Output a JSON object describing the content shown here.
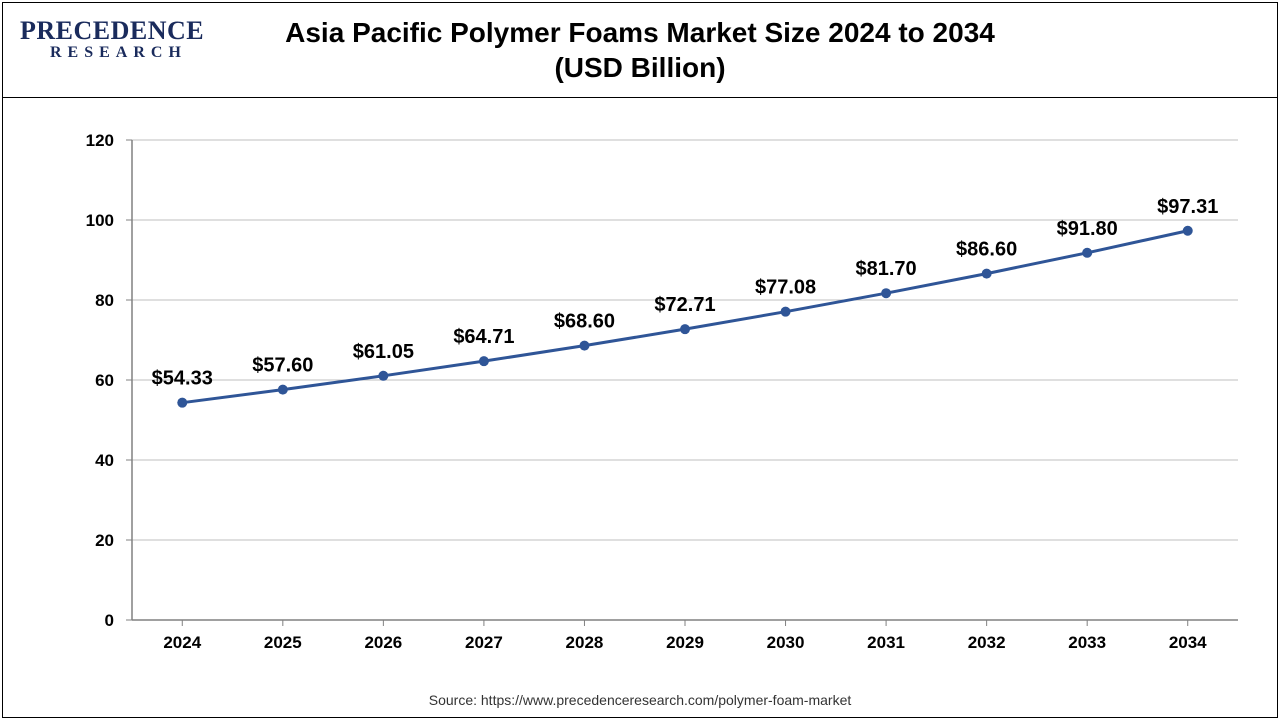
{
  "logo": {
    "line1": "PRECEDENCE",
    "line2": "RESEARCH"
  },
  "title_line1": "Asia Pacific Polymer Foams Market Size 2024 to 2034",
  "title_line2": "(USD Billion)",
  "source": "Source: https://www.precedenceresearch.com/polymer-foam-market",
  "chart": {
    "type": "line",
    "categories": [
      "2024",
      "2025",
      "2026",
      "2027",
      "2028",
      "2029",
      "2030",
      "2031",
      "2032",
      "2033",
      "2034"
    ],
    "values": [
      54.33,
      57.6,
      61.05,
      64.71,
      68.6,
      72.71,
      77.08,
      81.7,
      86.6,
      91.8,
      97.31
    ],
    "value_labels": [
      "$54.33",
      "$57.60",
      "$61.05",
      "$64.71",
      "$68.60",
      "$72.71",
      "$77.08",
      "$81.70",
      "$86.60",
      "$91.80",
      "$97.31"
    ],
    "ylim": [
      0,
      120
    ],
    "ytick_step": 20,
    "yticks": [
      0,
      20,
      40,
      60,
      80,
      100,
      120
    ],
    "line_color": "#2f5597",
    "line_width": 3,
    "marker_color": "#2f5597",
    "marker_radius": 5,
    "grid_color": "#bfbfbf",
    "axis_color": "#808080",
    "background_color": "#ffffff",
    "tick_fontsize": 17,
    "tick_fontweight": "bold",
    "datalabel_fontsize": 20,
    "datalabel_fontweight": "bold",
    "title_fontsize": 28
  }
}
